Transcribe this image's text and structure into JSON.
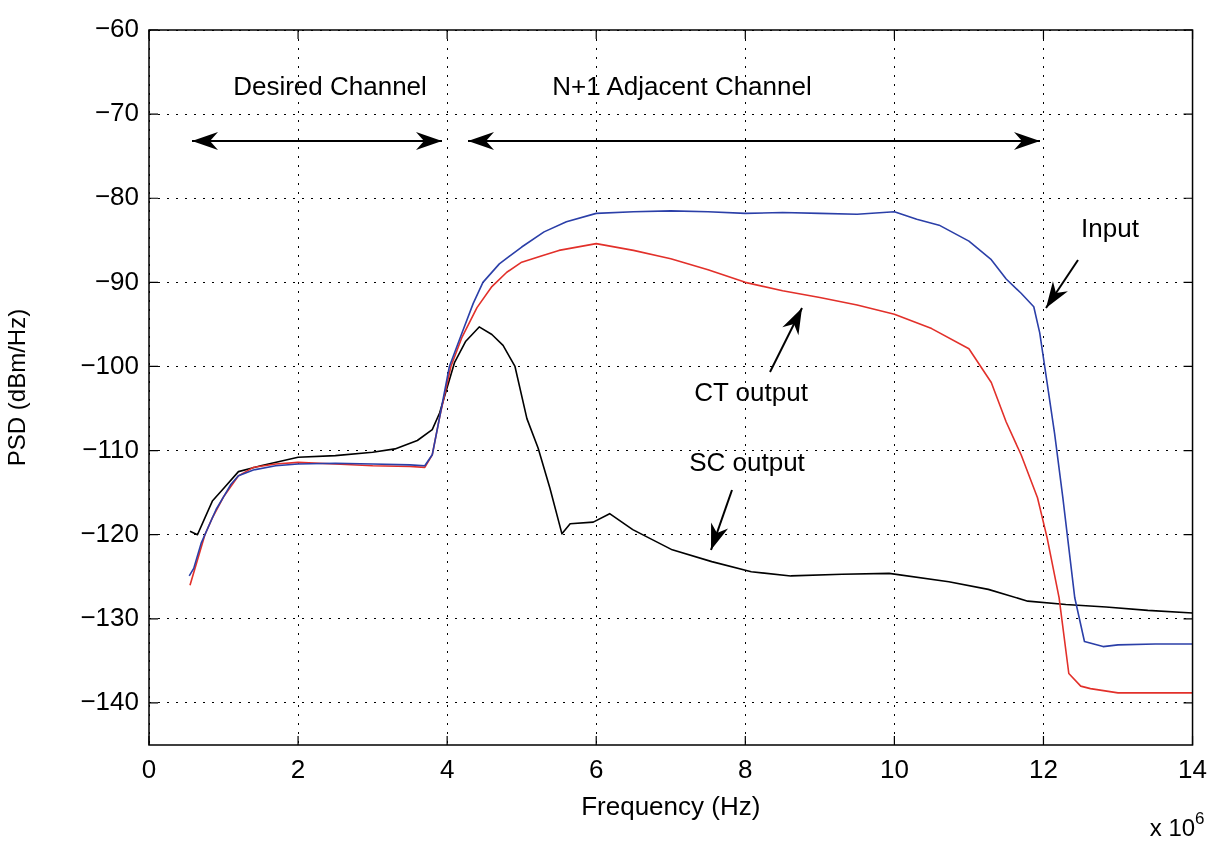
{
  "chart_data": {
    "type": "line",
    "xlabel": "Frequency (Hz)",
    "ylabel": "PSD (dBm/Hz)",
    "xlim": [
      0,
      14
    ],
    "xticks": [
      0,
      2,
      4,
      6,
      8,
      10,
      12,
      14
    ],
    "ylim": [
      -145,
      -60
    ],
    "yticks": [
      -140,
      -130,
      -120,
      -110,
      -100,
      -90,
      -80,
      -70,
      -60
    ],
    "grid": true,
    "series": [
      {
        "color": "#2b3fa8",
        "x": [
          0.54,
          0.6,
          0.7,
          0.8,
          0.9,
          1.0,
          1.1,
          1.2,
          1.4,
          1.7,
          2.0,
          2.5,
          3.0,
          3.5,
          3.7,
          3.8,
          3.9,
          4.03,
          4.2,
          4.35,
          4.48,
          4.7,
          5.0,
          5.3,
          5.6,
          6.0,
          6.5,
          7.0,
          7.5,
          8.0,
          8.5,
          9.0,
          9.5,
          10.0,
          10.3,
          10.6,
          11.0,
          11.3,
          11.5,
          11.7,
          11.87,
          11.95,
          12.05,
          12.15,
          12.26,
          12.42,
          12.55,
          12.8,
          13.0,
          13.5,
          14.0
        ],
        "values": [
          -124.9,
          -124,
          -121,
          -119,
          -117,
          -115.5,
          -114,
          -113,
          -112.3,
          -111.8,
          -111.6,
          -111.5,
          -111.6,
          -111.7,
          -111.8,
          -110.5,
          -106,
          -100,
          -96,
          -92.5,
          -90,
          -87.8,
          -85.8,
          -84,
          -82.8,
          -81.8,
          -81.6,
          -81.5,
          -81.6,
          -81.8,
          -81.7,
          -81.8,
          -81.9,
          -81.6,
          -82.5,
          -83.2,
          -85.1,
          -87.3,
          -89.6,
          -91.3,
          -92.9,
          -96,
          -102,
          -108,
          -115.6,
          -127.5,
          -132.7,
          -133.3,
          -133.1,
          -133,
          -133
        ]
      },
      {
        "color": "#e2302a",
        "x": [
          0.55,
          0.65,
          0.75,
          0.85,
          1.0,
          1.2,
          1.4,
          1.7,
          2.0,
          2.5,
          3.0,
          3.5,
          3.7,
          3.8,
          3.9,
          4.05,
          4.2,
          4.4,
          4.6,
          4.8,
          5.0,
          5.5,
          6.0,
          6.5,
          7.0,
          7.5,
          8.0,
          8.5,
          9.0,
          9.5,
          10.0,
          10.5,
          11.0,
          11.3,
          11.5,
          11.7,
          11.92,
          12.05,
          12.21,
          12.34,
          12.5,
          12.63,
          13.0,
          13.5,
          14.0
        ],
        "values": [
          -126,
          -123,
          -120,
          -118,
          -115.5,
          -113,
          -112,
          -111.6,
          -111.4,
          -111.6,
          -111.8,
          -111.9,
          -112,
          -110.5,
          -106,
          -100,
          -96.5,
          -93,
          -90.5,
          -88.8,
          -87.6,
          -86.2,
          -85.4,
          -86.2,
          -87.2,
          -88.5,
          -90,
          -91,
          -91.8,
          -92.7,
          -93.8,
          -95.5,
          -97.9,
          -101.9,
          -106.6,
          -110.5,
          -115.6,
          -120.4,
          -127.5,
          -136.5,
          -138,
          -138.3,
          -138.8,
          -138.8,
          -138.8
        ]
      },
      {
        "color": "#000000",
        "x": [
          0.55,
          0.65,
          0.75,
          0.85,
          1.0,
          1.2,
          1.5,
          2.0,
          2.5,
          3.0,
          3.3,
          3.6,
          3.8,
          3.9,
          4.0,
          4.1,
          4.25,
          4.43,
          4.6,
          4.75,
          4.91,
          5.07,
          5.22,
          5.38,
          5.54,
          5.65,
          5.96,
          6.18,
          6.49,
          7.02,
          7.55,
          8.08,
          8.61,
          9.3,
          9.93,
          10.73,
          11.26,
          11.79,
          12.3,
          12.84,
          13.4,
          14.0
        ],
        "values": [
          -119.6,
          -120,
          -118,
          -116,
          -114.5,
          -112.5,
          -111.8,
          -110.8,
          -110.6,
          -110.2,
          -109.8,
          -108.8,
          -107.5,
          -105.5,
          null,
          -99.5,
          -97,
          -95.3,
          -96.2,
          -97.5,
          -100,
          -106.2,
          -109.7,
          -114.5,
          -119.9,
          -118.7,
          -118.5,
          -117.5,
          -119.4,
          -121.8,
          -123.2,
          -124.4,
          -124.9,
          -124.7,
          -124.6,
          -125.6,
          -126.5,
          -127.9,
          -128.3,
          -128.6,
          -129,
          -129.3
        ]
      }
    ],
    "annotations": [
      "Desired Channel",
      "N+1 Adjacent Channel",
      "Input",
      "CT output",
      "SC output",
      "x 10$^{6}$"
    ]
  }
}
